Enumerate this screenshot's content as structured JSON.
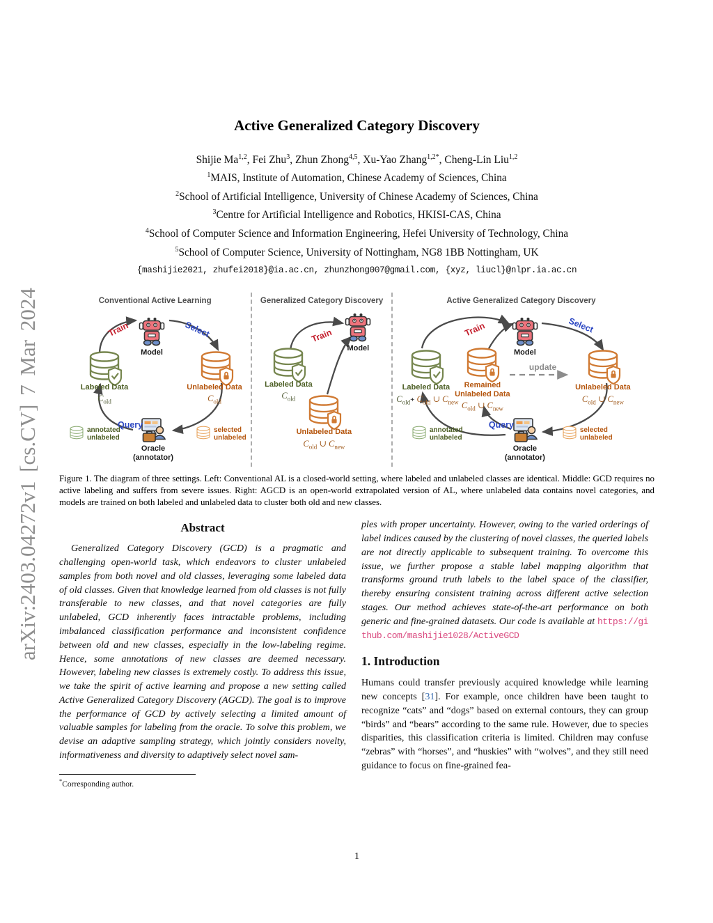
{
  "arxiv_watermark": "arXiv:2403.04272v1 [cs.CV] 7 Mar 2024",
  "header": {
    "title": "Active Generalized Category Discovery",
    "authors": [
      {
        "name": "Shijie Ma",
        "sup": "1,2",
        "sep": ",  "
      },
      {
        "name": "Fei Zhu",
        "sup": "3",
        "sep": ",  "
      },
      {
        "name": "Zhun Zhong",
        "sup": "4,5",
        "sep": ",  "
      },
      {
        "name": "Xu-Yao Zhang",
        "sup": "1,2*",
        "sep": ",  "
      },
      {
        "name": "Cheng-Lin Liu",
        "sup": "1,2",
        "sep": ""
      }
    ],
    "affiliations": [
      {
        "sup": "1",
        "text": "MAIS, Institute of Automation, Chinese Academy of Sciences, China"
      },
      {
        "sup": "2",
        "text": "School of Artificial Intelligence, University of Chinese Academy of Sciences, China"
      },
      {
        "sup": "3",
        "text": "Centre for Artificial Intelligence and Robotics, HKISI-CAS, China"
      },
      {
        "sup": "4",
        "text": "School of Computer Science and Information Engineering, Hefei University of Technology, China"
      },
      {
        "sup": "5",
        "text": "School of Computer Science, University of Nottingham, NG8 1BB Nottingham, UK"
      }
    ],
    "emails": "{mashijie2021, zhufei2018}@ia.ac.cn, zhunzhong007@gmail.com, {xyz, liucl}@nlpr.ia.ac.cn"
  },
  "figure": {
    "panel1": {
      "title": "Conventional Active Learning",
      "model": "Model",
      "train": "Train",
      "select": "Select",
      "query": "Query",
      "labeled_label": "Labeled Data",
      "labeled_math": "C_old",
      "unlabeled_label": "Unlabeled Data",
      "unlabeled_math": "C_old",
      "oracle1": "Oracle",
      "oracle2": "(annotator)",
      "legend_left1": "annotated",
      "legend_left2": "unlabeled",
      "legend_right1": "selected",
      "legend_right2": "unlabeled"
    },
    "panel2": {
      "title": "Generalized Category Discovery",
      "model": "Model",
      "train": "Train",
      "labeled_label": "Labeled Data",
      "labeled_math": "C_old",
      "unlabeled_label": "Unlabeled Data",
      "unlabeled_math": "C_old ∪ C_new"
    },
    "panel3": {
      "title": "Active Generalized Category Discovery",
      "model": "Model",
      "train": "Train",
      "select": "Select",
      "query": "Query",
      "update": "update",
      "labeled_label": "Labeled Data",
      "labeled_math_a": "C_old",
      "labeled_plus": "+",
      "labeled_math_b": "C_old ∪ C_new",
      "remained1": "Remained",
      "remained2": "Unlabeled Data",
      "remained_math": "C_old ∪ C_new",
      "unlabeled_label": "Unlabeled Data",
      "unlabeled_math": "C_old ∪ C_new",
      "oracle1": "Oracle",
      "oracle2": "(annotator)",
      "legend_left1": "annotated",
      "legend_left2": "unlabeled",
      "legend_right1": "selected",
      "legend_right2": "unlabeled"
    },
    "caption": "Figure 1. The diagram of three settings. Left: Conventional AL is a closed-world setting, where labeled and unlabeled classes are identical. Middle: GCD requires no active labeling and suffers from severe issues. Right: AGCD is an open-world extrapolated version of AL, where unlabeled data contains novel categories, and models are trained on both labeled and unlabeled data to cluster both old and new classes."
  },
  "abstract": {
    "heading": "Abstract",
    "text_left": "Generalized Category Discovery (GCD) is a pragmatic and challenging open-world task, which endeavors to cluster unlabeled samples from both novel and old classes, leveraging some labeled data of old classes. Given that knowledge learned from old classes is not fully transferable to new classes, and that novel categories are fully unlabeled, GCD inherently faces intractable problems, including imbalanced classification performance and inconsistent confidence between old and new classes, especially in the low-labeling regime. Hence, some annotations of new classes are deemed necessary. However, labeling new classes is extremely costly. To address this issue, we take the spirit of active learning and propose a new setting called Active Generalized Category Discovery (AGCD). The goal is to improve the performance of GCD by actively selecting a limited amount of valuable samples for labeling from the oracle. To solve this problem, we devise an adaptive sampling strategy, which jointly considers novelty, informativeness and diversity to adaptively select novel sam-",
    "text_right": "ples with proper uncertainty. However, owing to the varied orderings of label indices caused by the clustering of novel classes, the queried labels are not directly applicable to subsequent training. To overcome this issue, we further propose a stable label mapping algorithm that transforms ground truth labels to the label space of the classifier, thereby ensuring consistent training across different active selection stages. Our method achieves state-of-the-art performance on both generic and fine-grained datasets. Our code is available at ",
    "code_url": "https://github.com/mashijie1028/ActiveGCD"
  },
  "footnote": {
    "star": "*",
    "text": "Corresponding author."
  },
  "intro": {
    "heading": "1. Introduction",
    "p1_seg1": "Humans could transfer previously acquired knowledge while learning new concepts [",
    "p1_cite": "31",
    "p1_seg2": "]. For example, once children have been taught to recognize “cats” and “dogs” based on external contours, they can group “birds” and “bears” according to the same rule. However, due to species disparities, this classification criteria is limited. Children may confuse “zebras” with “horses”, and “huskies” with “wolves”, and they still need guidance to focus on fine-grained fea-"
  },
  "page_number": "1",
  "colors": {
    "green_data": "#4c5e24",
    "orange_data": "#b5560e",
    "green_icon": "#76864f",
    "orange_icon": "#d07a33",
    "train_red": "#c41f2d",
    "select_blue": "#2c47c2",
    "update_gray": "#8c8c8c",
    "link_pink": "#d9487e",
    "cite_blue": "#3b6fb2"
  }
}
